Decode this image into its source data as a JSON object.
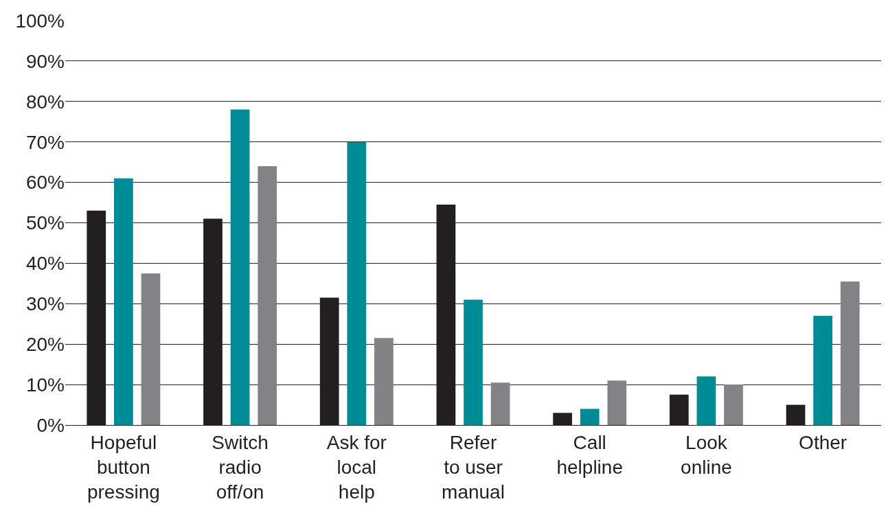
{
  "chart_data": {
    "type": "bar",
    "categories": [
      "Hopeful button pressing",
      "Switch radio off/on",
      "Ask for local help",
      "Refer to user manual",
      "Call helpline",
      "Look online",
      "Other"
    ],
    "series": [
      {
        "color": "#231f20",
        "values": [
          53,
          51,
          31.5,
          54.5,
          3,
          7.5,
          5
        ]
      },
      {
        "color": "#008c95",
        "values": [
          61,
          78,
          70,
          31,
          4,
          12,
          27
        ]
      },
      {
        "color": "#838386",
        "values": [
          37.5,
          64,
          21.5,
          10.5,
          11,
          10,
          35.5
        ]
      }
    ],
    "ylim": [
      0,
      100
    ],
    "yticks": [
      {
        "value": 0,
        "label": "0%"
      },
      {
        "value": 10,
        "label": "10%"
      },
      {
        "value": 20,
        "label": "20%"
      },
      {
        "value": 30,
        "label": "30%"
      },
      {
        "value": 40,
        "label": "40%"
      },
      {
        "value": 50,
        "label": "50%"
      },
      {
        "value": 60,
        "label": "60%"
      },
      {
        "value": 70,
        "label": "70%"
      },
      {
        "value": 80,
        "label": "80%"
      },
      {
        "value": 90,
        "label": "90%"
      },
      {
        "value": 100,
        "label": "100%"
      }
    ],
    "grid": "y"
  }
}
